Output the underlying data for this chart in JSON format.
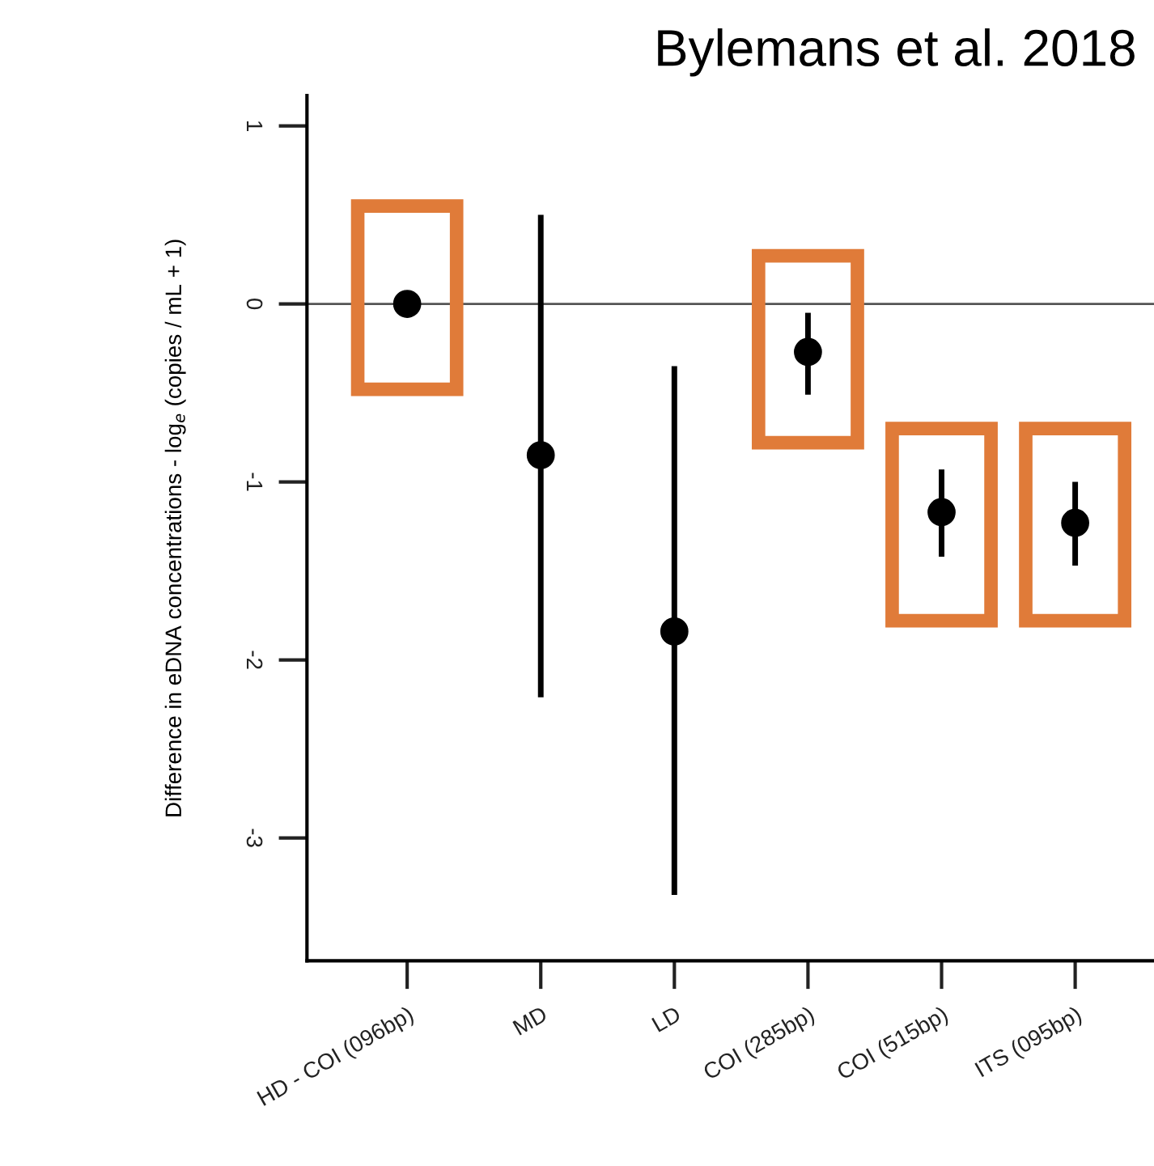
{
  "chart_data": {
    "type": "scatter",
    "title": "Bylemans et al. 2018",
    "ylabel": "Difference in eDNA concentrations - log$_{e}$ (copies / mL + 1)",
    "categories": [
      "HD - COI (096bp)",
      "MD",
      "LD",
      "COI (285bp)",
      "COI (515bp)",
      "ITS (095bp)"
    ],
    "series": [
      {
        "color": "#000000",
        "values": [
          0,
          -0.85,
          -1.84,
          -0.27,
          -1.17,
          -1.23
        ],
        "errors": [
          null,
          [
            -2.21,
            0.5
          ],
          [
            -3.32,
            -0.35
          ],
          [
            -0.51,
            -0.05
          ],
          [
            -1.42,
            -0.93
          ],
          [
            -1.47,
            -1.0
          ]
        ]
      }
    ],
    "ylim": [
      -3.69,
      1.17
    ],
    "yticks": [
      1,
      0,
      -1,
      -2,
      -3
    ],
    "marker": "circle",
    "ref_lines": [
      {
        "axis": "y",
        "value": 0,
        "color": "#555555"
      }
    ]
  }
}
